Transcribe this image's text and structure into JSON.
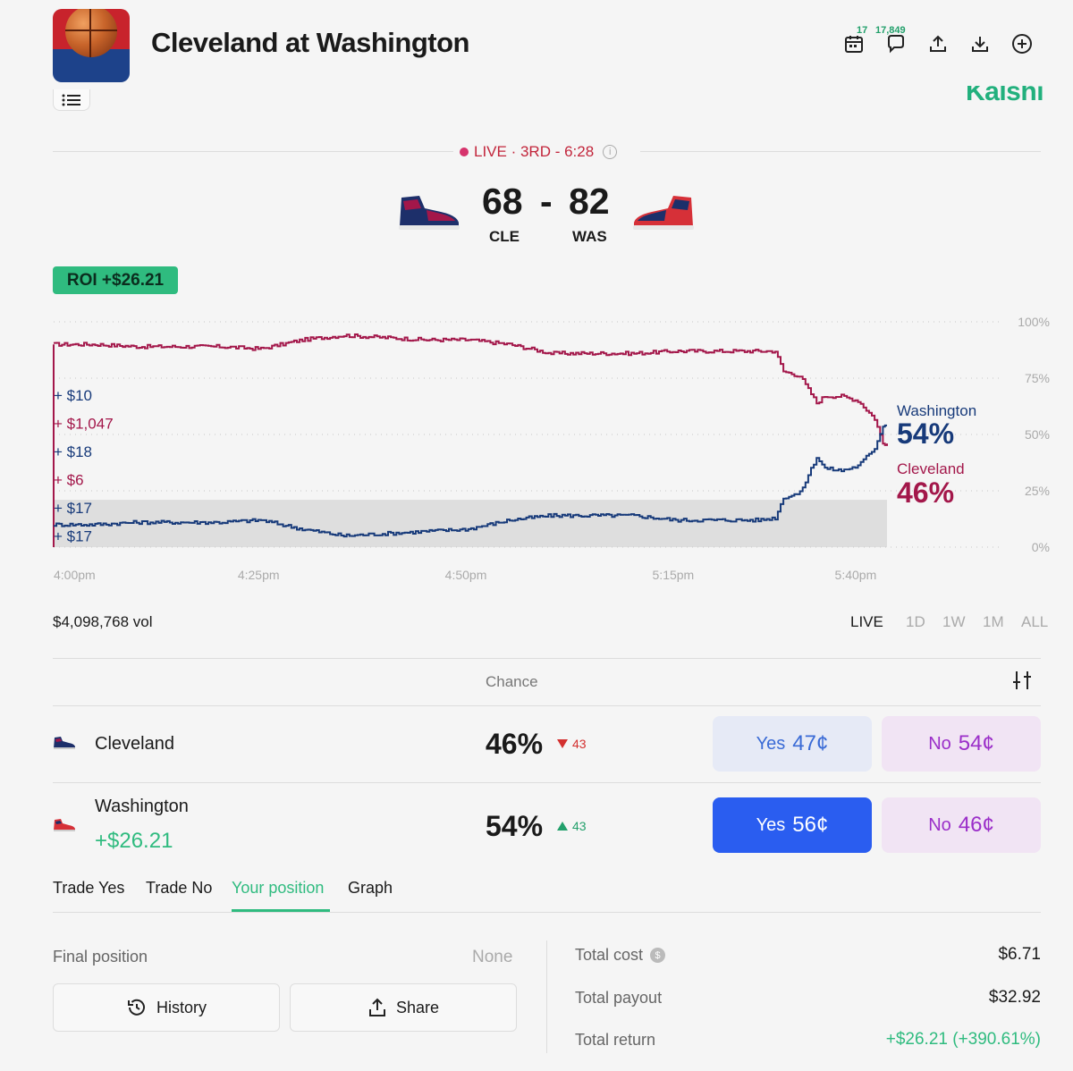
{
  "header": {
    "title": "Cleveland at Washington",
    "calendar_badge": "17",
    "comments_count": "17,849"
  },
  "brand": "Kalshi",
  "live": {
    "status": "LIVE · 3RD - 6:28"
  },
  "score": {
    "away": {
      "abbr": "CLE",
      "points": "68"
    },
    "separator": "-",
    "home": {
      "abbr": "WAS",
      "points": "82"
    }
  },
  "roi": "ROI +$26.21",
  "chart_data": {
    "type": "line",
    "x_ticks": [
      "4:00pm",
      "4:25pm",
      "4:50pm",
      "5:15pm",
      "5:40pm"
    ],
    "y_ticks": [
      "100%",
      "75%",
      "50%",
      "25%",
      "0%"
    ],
    "ylim": [
      0,
      100
    ],
    "grid": true,
    "trade_markers": [
      "+ $10",
      "+ $1,047",
      "+ $18",
      "+ $6",
      "+ $17",
      "+ $17"
    ],
    "end_labels": [
      {
        "name": "Washington",
        "value": "54%"
      },
      {
        "name": "Cleveland",
        "value": "46%"
      }
    ],
    "series": [
      {
        "name": "Cleveland",
        "color": "#a3174a",
        "x_minutes": [
          0,
          5,
          10,
          15,
          20,
          25,
          30,
          35,
          40,
          45,
          50,
          55,
          60,
          65,
          70,
          75,
          80,
          85,
          87,
          88,
          90,
          92,
          93,
          95,
          97,
          99,
          100,
          100.5
        ],
        "y": [
          90,
          90,
          89,
          89,
          89,
          88,
          92,
          94,
          93,
          92,
          92,
          90,
          86,
          86,
          86,
          87,
          87,
          87,
          87,
          78,
          76,
          64,
          67,
          67,
          65,
          57,
          46,
          46
        ]
      },
      {
        "name": "Washington",
        "color": "#173a7a",
        "x_minutes": [
          0,
          5,
          10,
          15,
          20,
          25,
          30,
          35,
          40,
          45,
          50,
          55,
          60,
          65,
          70,
          75,
          80,
          85,
          87,
          88,
          90,
          92,
          93,
          95,
          97,
          99,
          100,
          100.5
        ],
        "y": [
          10,
          10,
          11,
          11,
          11,
          12,
          8,
          5,
          6,
          7,
          8,
          12,
          14,
          14,
          14,
          12,
          12,
          12,
          13,
          22,
          24,
          40,
          35,
          34,
          36,
          44,
          54,
          54
        ]
      }
    ]
  },
  "volume": "$4,098,768 vol",
  "ranges": [
    "LIVE",
    "1D",
    "1W",
    "1M",
    "ALL"
  ],
  "market": {
    "chance_header": "Chance",
    "rows": [
      {
        "team": "Cleveland",
        "chance": "46%",
        "delta": "43",
        "yes_label": "Yes",
        "yes_price": "47¢",
        "no_label": "No",
        "no_price": "54¢"
      },
      {
        "team": "Washington",
        "gain": "+$26.21",
        "chance": "54%",
        "delta": "43",
        "yes_label": "Yes",
        "yes_price": "56¢",
        "no_label": "No",
        "no_price": "46¢"
      }
    ]
  },
  "tabs": [
    "Trade Yes",
    "Trade No",
    "Your position",
    "Graph"
  ],
  "position": {
    "final_label": "Final position",
    "final_value": "None",
    "history_label": "History",
    "share_label": "Share",
    "total_cost_label": "Total cost",
    "total_cost": "$6.71",
    "total_payout_label": "Total payout",
    "total_payout": "$32.92",
    "total_return_label": "Total return",
    "total_return": "+$26.21 (+390.61%)"
  },
  "colors": {
    "accent_green": "#2fbb7f",
    "washington_blue": "#173a7a",
    "cleveland_red": "#a3174a",
    "yes_blue": "#2a5df0"
  }
}
